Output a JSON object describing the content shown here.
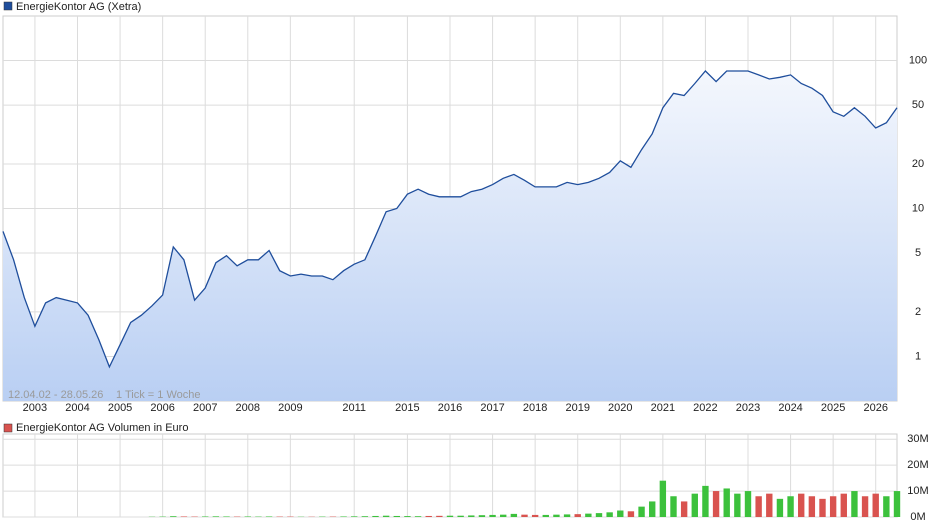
{
  "chart_data": [
    {
      "type": "line",
      "title": "EnergieKontor AG (Xetra)",
      "subtitle": "12.04.02 - 28.05.26",
      "annotation": "1 Tick = 1 Woche",
      "categories": [
        null,
        null,
        null,
        "2003",
        null,
        null,
        null,
        "2004",
        null,
        null,
        null,
        "2005",
        null,
        null,
        null,
        "2006",
        null,
        null,
        null,
        "2007",
        null,
        null,
        null,
        "2008",
        null,
        null,
        null,
        "2009",
        null,
        null,
        null,
        null,
        null,
        "2011",
        null,
        null,
        null,
        null,
        "2015",
        null,
        null,
        null,
        "2016",
        null,
        null,
        null,
        "2017",
        null,
        null,
        null,
        "2018",
        null,
        null,
        null,
        "2019",
        null,
        null,
        null,
        "2020",
        null,
        null,
        null,
        "2021",
        null,
        null,
        null,
        "2022",
        null,
        null,
        null,
        "2023",
        null,
        null,
        null,
        "2024",
        null,
        null,
        null,
        "2025",
        null,
        null,
        null,
        "2026",
        null,
        null
      ],
      "series": [
        {
          "name": "EnergieKontor AG (Xetra)",
          "color": "#1f4e9c",
          "values": [
            7,
            4.5,
            2.5,
            1.6,
            2.3,
            2.5,
            2.4,
            2.3,
            1.9,
            1.3,
            0.85,
            1.2,
            1.7,
            1.9,
            2.2,
            2.6,
            5.5,
            4.5,
            2.4,
            2.9,
            4.3,
            4.8,
            4.1,
            4.5,
            4.5,
            5.2,
            3.8,
            3.5,
            3.6,
            3.5,
            3.5,
            3.3,
            3.8,
            4.2,
            4.5,
            6.5,
            9.5,
            10,
            12.5,
            13.5,
            12.5,
            12,
            12,
            12,
            13,
            13.5,
            14.5,
            16,
            17,
            15.5,
            14,
            14,
            14,
            15,
            14.5,
            15,
            16,
            17.5,
            21,
            19,
            25,
            32,
            48,
            60,
            58,
            70,
            85,
            72,
            85,
            85,
            85,
            80,
            75,
            77,
            80,
            70,
            65,
            58,
            45,
            42,
            48,
            42,
            35,
            38,
            48
          ]
        }
      ],
      "log_scale": true,
      "ylim": [
        0.5,
        200
      ],
      "yticks": [
        1,
        2,
        5,
        10,
        20,
        50,
        100
      ],
      "grid": true,
      "legend": "top-left"
    },
    {
      "type": "bar",
      "title": "EnergieKontor AG Volumen in Euro",
      "values": [
        0,
        0,
        0,
        0,
        0,
        0,
        0,
        0,
        0,
        0,
        0,
        0,
        0,
        0,
        100000,
        150000,
        300000,
        200000,
        150000,
        200000,
        250000,
        200000,
        150000,
        200000,
        150000,
        200000,
        150000,
        150000,
        100000,
        100000,
        150000,
        150000,
        200000,
        250000,
        300000,
        400000,
        500000,
        400000,
        350000,
        300000,
        400000,
        450000,
        500000,
        500000,
        600000,
        700000,
        800000,
        900000,
        1200000,
        900000,
        800000,
        800000,
        900000,
        1000000,
        1100000,
        1300000,
        1500000,
        1800000,
        2500000,
        2200000,
        4000000,
        6000000,
        14000000,
        8000000,
        6000000,
        9000000,
        12000000,
        10000000,
        11000000,
        9000000,
        10000000,
        8000000,
        9000000,
        7000000,
        8000000,
        9000000,
        8000000,
        7000000,
        8000000,
        9000000,
        10000000,
        8000000,
        9000000,
        8000000,
        10000000
      ],
      "up_color": "#3cc13c",
      "down_color": "#d9534f",
      "legend_color": "#d9534f",
      "ylim": [
        0,
        32000000
      ],
      "yticks": [
        {
          "value": 0,
          "label": "0M"
        },
        {
          "value": 10000000,
          "label": "10M"
        },
        {
          "value": 20000000,
          "label": "20M"
        },
        {
          "value": 30000000,
          "label": "30M"
        }
      ],
      "grid": true
    }
  ]
}
